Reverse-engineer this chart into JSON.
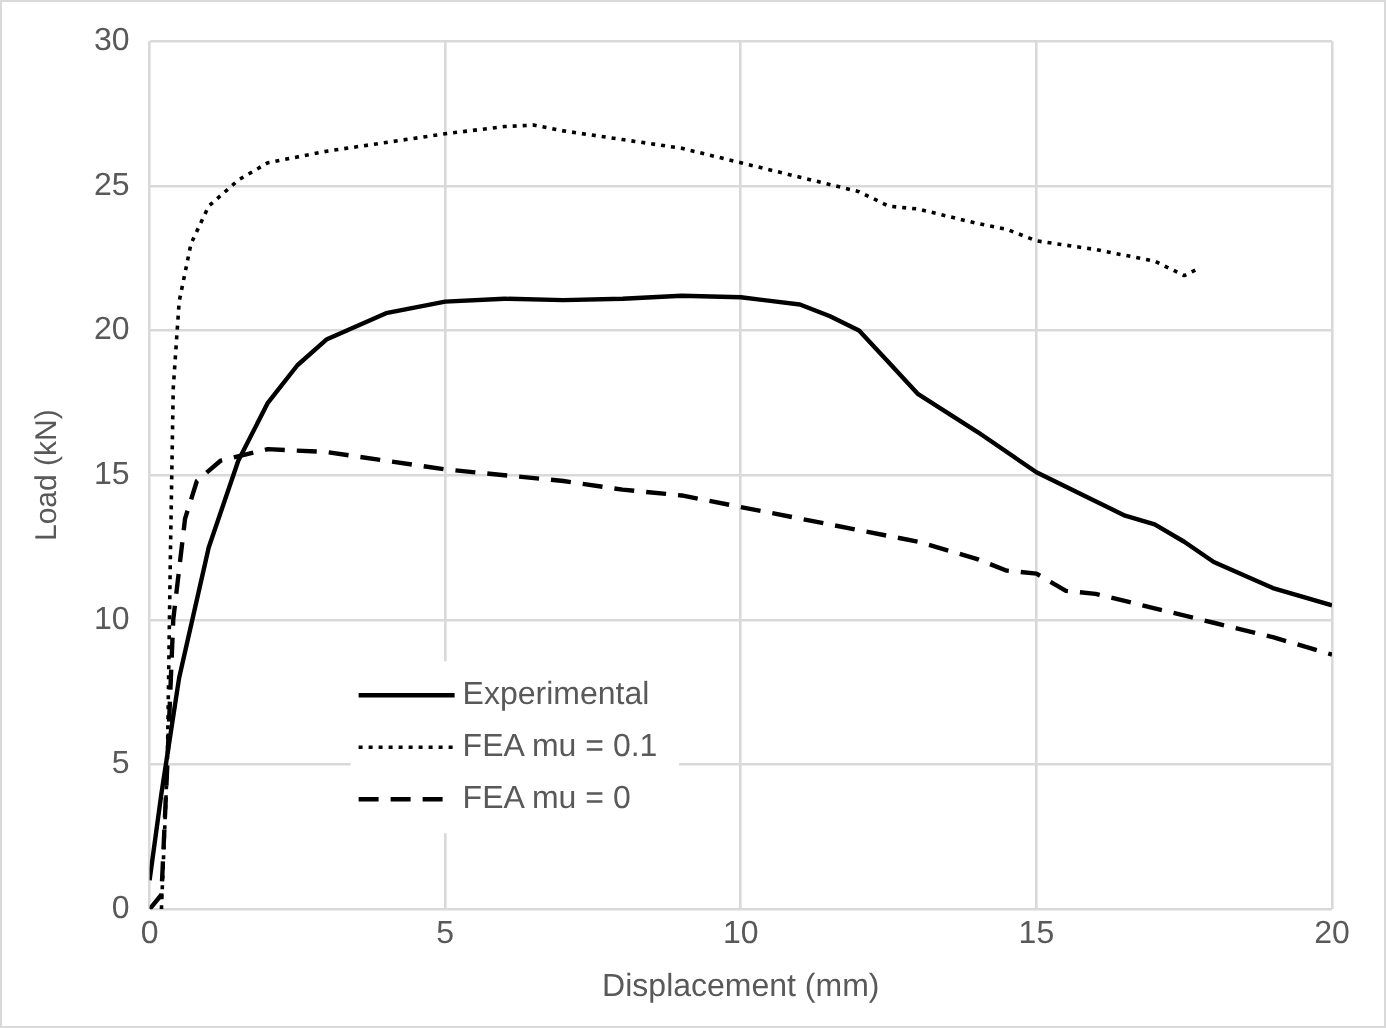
{
  "chart_data": {
    "type": "line",
    "xlabel": "Displacement (mm)",
    "ylabel": "Load (kN)",
    "xlim": [
      0,
      20
    ],
    "xticks": [
      0,
      5,
      10,
      15,
      20
    ],
    "ylim": [
      0,
      30
    ],
    "yticks": [
      0,
      5,
      10,
      15,
      20,
      25,
      30
    ],
    "grid": true,
    "legend": "bottom left",
    "marker": "none",
    "series": [
      {
        "name": "Experimental",
        "color": "#000000",
        "line_style": "solid",
        "x": [
          0,
          0.2,
          0.5,
          1,
          1.5,
          2,
          2.5,
          3,
          4,
          5,
          6,
          7,
          8,
          9,
          10,
          11,
          11.5,
          12,
          12.5,
          13,
          14,
          15,
          16,
          16.5,
          17,
          17.5,
          18,
          19,
          20
        ],
        "values": [
          1,
          4,
          8,
          12.5,
          15.5,
          17.5,
          18.8,
          19.7,
          20.6,
          21,
          21.1,
          21.05,
          21.1,
          21.2,
          21.15,
          20.9,
          20.5,
          20,
          18.9,
          17.8,
          16.5,
          15.1,
          14.1,
          13.6,
          13.3,
          12.7,
          12,
          11.1,
          10.5
        ]
      },
      {
        "name": "FEA mu = 0.1",
        "color": "#000000",
        "line_style": "dotted",
        "x": [
          0.2,
          0.3,
          0.35,
          0.4,
          0.5,
          0.7,
          1,
          1.5,
          2,
          3,
          4,
          5,
          6,
          6.5,
          7,
          8,
          9,
          10,
          11,
          12,
          12.5,
          13,
          14,
          14.5,
          15,
          16,
          17,
          17.5,
          17.7
        ],
        "values": [
          0,
          5,
          12,
          18,
          21,
          23,
          24.3,
          25.2,
          25.8,
          26.2,
          26.5,
          26.8,
          27.05,
          27.1,
          26.9,
          26.6,
          26.3,
          25.8,
          25.3,
          24.8,
          24.3,
          24.2,
          23.7,
          23.5,
          23.1,
          22.8,
          22.4,
          21.9,
          22.1
        ]
      },
      {
        "name": "FEA mu = 0",
        "color": "#000000",
        "line_style": "dashed",
        "x": [
          0,
          0.2,
          0.3,
          0.4,
          0.6,
          0.8,
          1.2,
          2,
          3,
          4,
          5,
          6,
          7,
          8,
          9,
          10,
          11,
          12,
          13,
          14,
          14.5,
          15,
          15.5,
          16,
          17,
          18,
          19,
          20
        ],
        "values": [
          0,
          0.5,
          5,
          10,
          13.5,
          14.8,
          15.5,
          15.9,
          15.8,
          15.5,
          15.2,
          15,
          14.8,
          14.5,
          14.3,
          13.9,
          13.5,
          13.1,
          12.7,
          12.1,
          11.7,
          11.6,
          11,
          10.9,
          10.4,
          9.9,
          9.4,
          8.8
        ]
      }
    ]
  }
}
